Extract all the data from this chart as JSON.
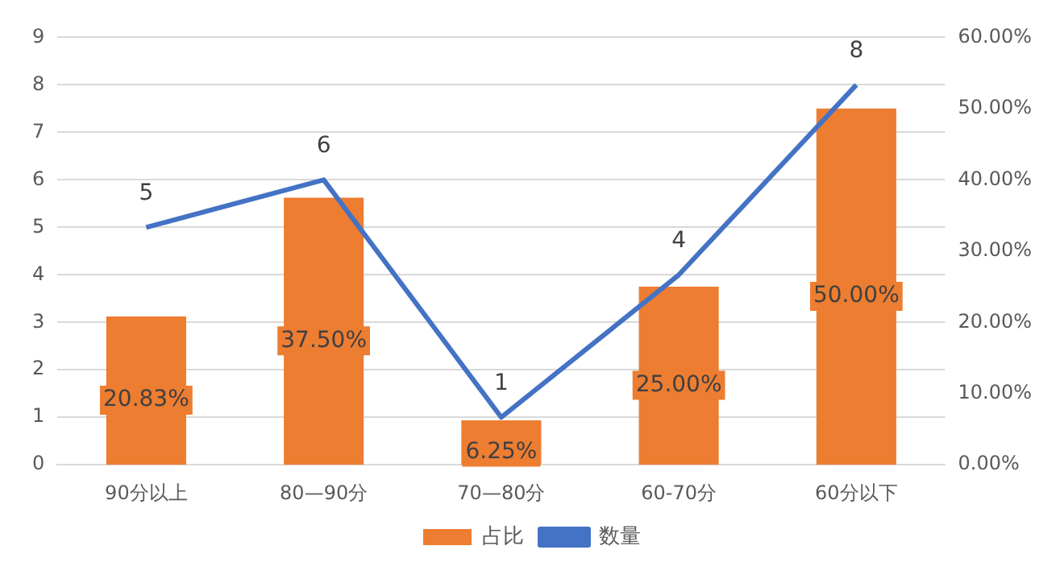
{
  "chart_data": {
    "type": "bar",
    "categories": [
      "90分以上",
      "80—90分",
      "70—80分",
      "60-70分",
      "60分以下"
    ],
    "series": [
      {
        "name": "占比",
        "axis": "y2",
        "color": "#ed7d31",
        "values": [
          20.83,
          37.5,
          6.25,
          25,
          50
        ],
        "value_labels": [
          "20.83%",
          "37.50%",
          "6.25%",
          "25.00%",
          "50.00%"
        ]
      },
      {
        "name": "数量",
        "type": "line",
        "axis": "y",
        "color": "#4472c4",
        "values": [
          5,
          6,
          1,
          4,
          8
        ],
        "value_labels": [
          "5",
          "6",
          "1",
          "4",
          "8"
        ]
      }
    ],
    "ylim": [
      0,
      9
    ],
    "yticks": [
      0,
      1,
      2,
      3,
      4,
      5,
      6,
      7,
      8,
      9
    ],
    "y2lim": [
      0,
      60
    ],
    "y2ticks": [
      {
        "value": 0,
        "label": "0.00%"
      },
      {
        "value": 10,
        "label": "10.00%"
      },
      {
        "value": 20,
        "label": "20.00%"
      },
      {
        "value": 30,
        "label": "30.00%"
      },
      {
        "value": 40,
        "label": "40.00%"
      },
      {
        "value": 50,
        "label": "50.00%"
      },
      {
        "value": 60,
        "label": "60.00%"
      }
    ],
    "grid": "y",
    "legend": "bottom",
    "marker": "none",
    "line_style": "solid"
  }
}
